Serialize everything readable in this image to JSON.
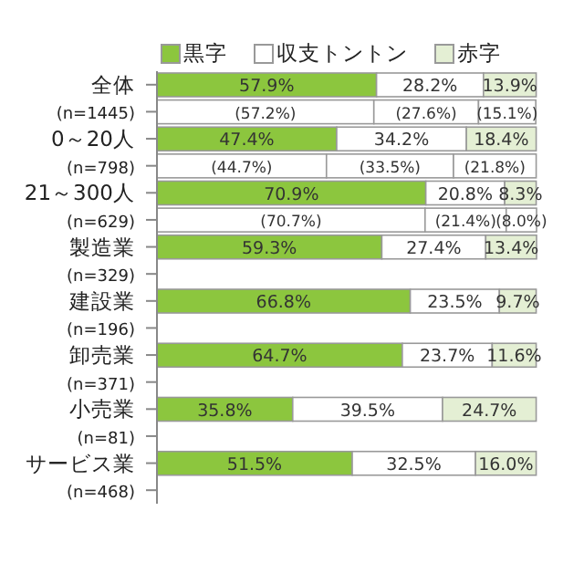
{
  "chart_data": {
    "type": "bar",
    "orientation": "horizontal",
    "stacked": true,
    "legend": "top",
    "xlim": [
      0,
      100
    ],
    "tick_labels": "y",
    "categories": [
      "全体",
      "(n=1445)",
      "0～20人",
      "(n=798)",
      "21～300人",
      "(n=629)",
      "製造業",
      "(n=329)",
      "建設業",
      "(n=196)",
      "卸売業",
      "(n=371)",
      "小売業",
      "(n=81)",
      "サービス業",
      "(n=468)"
    ],
    "series": [
      {
        "name": "黒字",
        "color": "#8cc63e",
        "values": [
          57.9,
          null,
          47.4,
          null,
          70.9,
          null,
          59.3,
          null,
          66.8,
          null,
          64.7,
          null,
          35.8,
          null,
          51.5,
          null
        ],
        "value_labels": [
          "57.9%",
          null,
          "47.4%",
          null,
          "70.9%",
          null,
          "59.3%",
          null,
          "66.8%",
          null,
          "64.7%",
          null,
          "35.8%",
          null,
          "51.5%",
          null
        ]
      },
      {
        "name": "収支トントン",
        "color": "#ffffff",
        "values": [
          28.2,
          null,
          34.2,
          null,
          20.8,
          null,
          27.4,
          null,
          23.5,
          null,
          23.7,
          null,
          39.5,
          null,
          32.5,
          null
        ],
        "value_labels": [
          "28.2%",
          null,
          "34.2%",
          null,
          "20.8%",
          null,
          "27.4%",
          null,
          "23.5%",
          null,
          "23.7%",
          null,
          "39.5%",
          null,
          "32.5%",
          null
        ]
      },
      {
        "name": "赤字",
        "color": "#e4efd4",
        "values": [
          13.9,
          null,
          18.4,
          null,
          8.3,
          null,
          13.4,
          null,
          9.7,
          null,
          11.6,
          null,
          24.7,
          null,
          16.0,
          null
        ],
        "value_labels": [
          "13.9%",
          null,
          "18.4%",
          null,
          "8.3%",
          null,
          "13.4%",
          null,
          "9.7%",
          null,
          "11.6%",
          null,
          "24.7%",
          null,
          "16.0%",
          null
        ]
      },
      {
        "color": "#ffffff",
        "values": [
          null,
          57.2,
          null,
          44.7,
          null,
          70.7,
          null,
          null,
          null,
          null,
          null,
          null,
          null,
          null,
          null,
          null
        ],
        "value_labels": [
          null,
          "(57.2%)",
          null,
          "(44.7%)",
          null,
          "(70.7%)",
          null,
          null,
          null,
          null,
          null,
          null,
          null,
          null,
          null,
          null
        ]
      },
      {
        "color": "#ffffff",
        "values": [
          null,
          27.6,
          null,
          33.5,
          null,
          21.4,
          null,
          null,
          null,
          null,
          null,
          null,
          null,
          null,
          null,
          null
        ],
        "value_labels": [
          null,
          "(27.6%)",
          null,
          "(33.5%)",
          null,
          "(21.4%)",
          null,
          null,
          null,
          null,
          null,
          null,
          null,
          null,
          null,
          null
        ]
      },
      {
        "color": "#ffffff",
        "values": [
          null,
          15.1,
          null,
          21.8,
          null,
          8.0,
          null,
          null,
          null,
          null,
          null,
          null,
          null,
          null,
          null,
          null
        ],
        "value_labels": [
          null,
          "(15.1%)",
          null,
          "(21.8%)",
          null,
          "(8.0%)",
          null,
          null,
          null,
          null,
          null,
          null,
          null,
          null,
          null,
          null
        ]
      }
    ]
  }
}
